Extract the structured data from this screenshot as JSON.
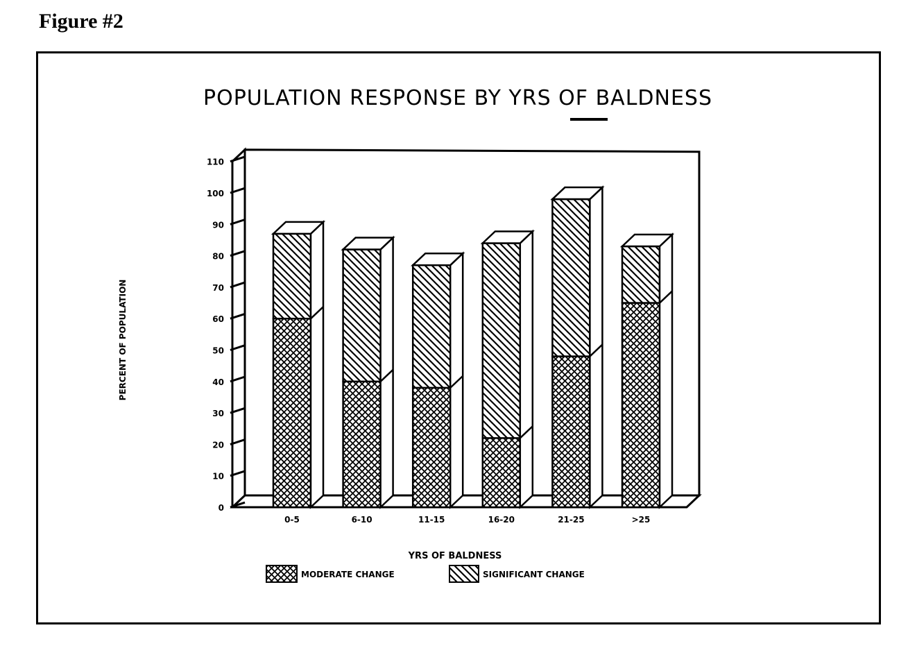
{
  "figure_label": "Figure #2",
  "chart_data": {
    "type": "bar",
    "stacked": true,
    "three_d": true,
    "title": "POPULATION RESPONSE BY YRS OF BALDNESS",
    "xlabel": "YRS OF BALDNESS",
    "ylabel": "PERCENT OF POPULATION",
    "ylim": [
      0,
      110
    ],
    "yticks": [
      "0",
      "10",
      "20",
      "30",
      "40",
      "50",
      "60",
      "70",
      "80",
      "90",
      "100",
      "110"
    ],
    "categories": [
      "0-5",
      "6-10",
      "11-15",
      "16-20",
      "21-25",
      ">25"
    ],
    "series": [
      {
        "name": "MODERATE CHANGE",
        "pattern": "crosshatch",
        "values": [
          60,
          40,
          38,
          22,
          48,
          65
        ]
      },
      {
        "name": "SIGNIFICANT CHANGE",
        "pattern": "diagonal",
        "values": [
          27,
          42,
          39,
          62,
          50,
          18
        ]
      }
    ],
    "legend_position": "bottom-center",
    "grid": false,
    "colors": {
      "ink": "#000000",
      "paper": "#ffffff"
    }
  }
}
